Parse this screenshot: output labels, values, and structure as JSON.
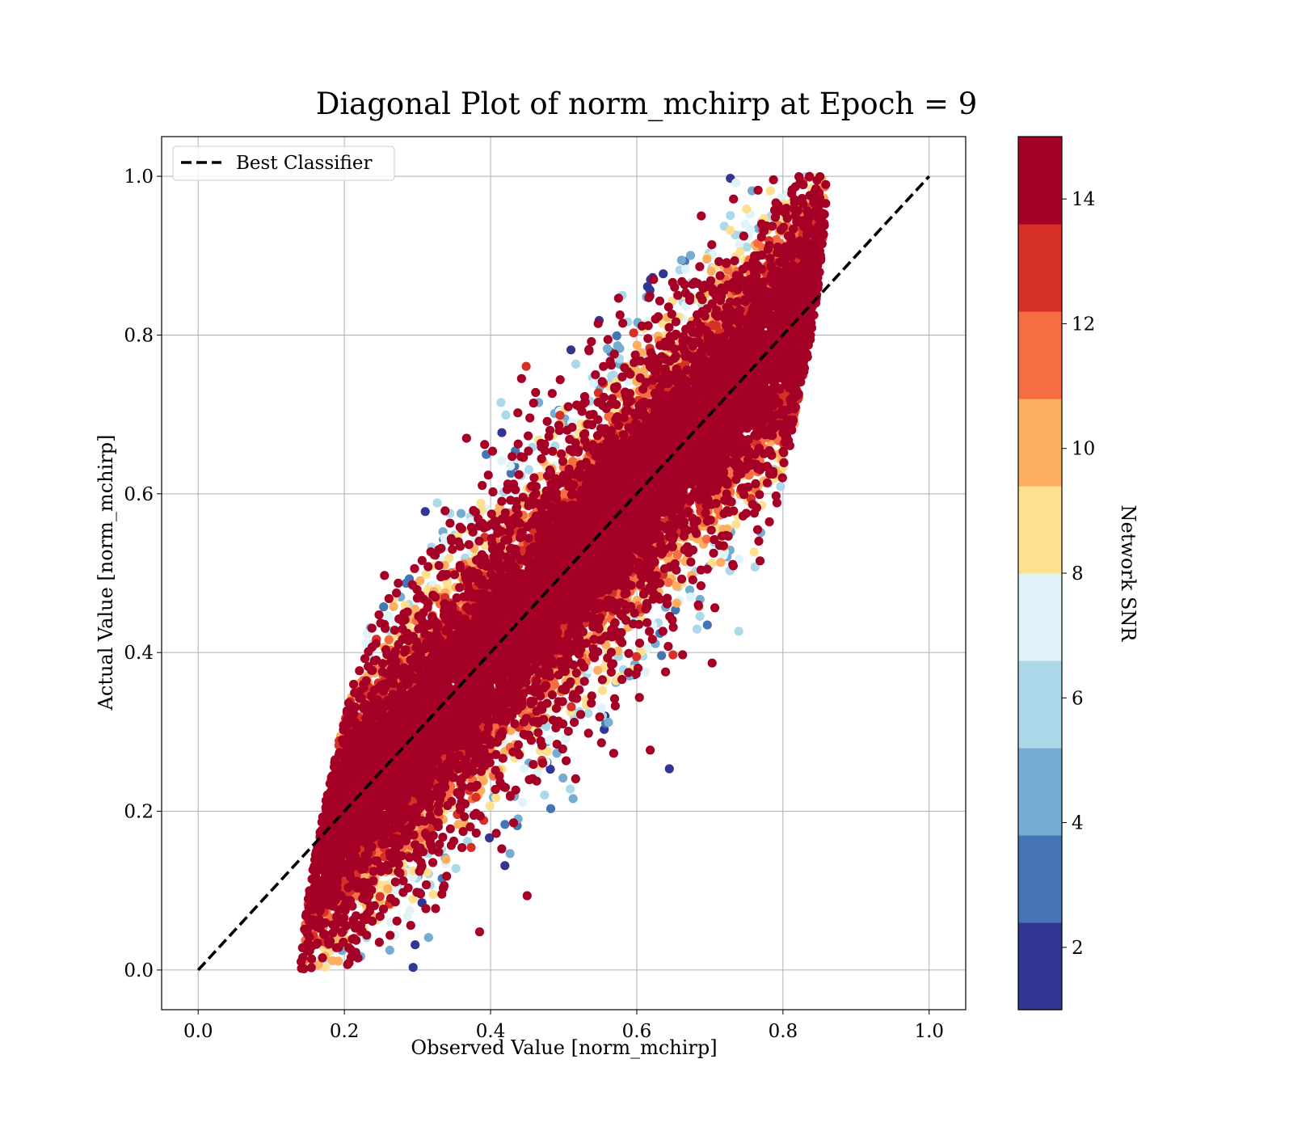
{
  "chart_data": {
    "type": "scatter",
    "title": "Diagonal Plot of norm_mchirp at Epoch = 9",
    "xlabel": "Observed Value [norm_mchirp]",
    "ylabel": "Actual Value [norm_mchirp]",
    "xlim": [
      -0.05,
      1.05
    ],
    "ylim": [
      -0.05,
      1.05
    ],
    "xticks": [
      0.0,
      0.2,
      0.4,
      0.6,
      0.8,
      1.0
    ],
    "yticks": [
      0.0,
      0.2,
      0.4,
      0.6,
      0.8,
      1.0
    ],
    "xtick_labels": [
      "0.0",
      "0.2",
      "0.4",
      "0.6",
      "0.8",
      "1.0"
    ],
    "ytick_labels": [
      "0.0",
      "0.2",
      "0.4",
      "0.6",
      "0.8",
      "1.0"
    ],
    "grid": true,
    "legend": {
      "placement": "upper-left",
      "entries": [
        "Best Classifier"
      ]
    },
    "reference_line": {
      "name": "Best Classifier",
      "x": [
        0.0,
        1.0
      ],
      "y": [
        0.0,
        1.0
      ],
      "style": "dashed",
      "color": "#000000"
    },
    "colorbar": {
      "label": "Network SNR",
      "range": [
        1,
        15
      ],
      "ticks": [
        2,
        4,
        6,
        8,
        10,
        12,
        14
      ],
      "tick_labels": [
        "2",
        "4",
        "6",
        "8",
        "10",
        "12",
        "14"
      ],
      "colors": [
        "#313695",
        "#4575b4",
        "#74add1",
        "#abd9e9",
        "#e0f3f8",
        "#fee090",
        "#fdae61",
        "#f46d43",
        "#d73027",
        "#a50026"
      ]
    },
    "series": [
      {
        "marker": "circle",
        "count": 12000,
        "snr_range": [
          1,
          15
        ],
        "x_range": [
          0.13,
          0.89
        ],
        "y_range": [
          0.0,
          1.0
        ],
        "trend": "dense high-SNR band around y = x; low-SNR points at upper-left (x 0.3-0.6, y 0.6-1.0) and lower-right (x 0.45-0.75, y 0.0-0.3)"
      }
    ]
  }
}
